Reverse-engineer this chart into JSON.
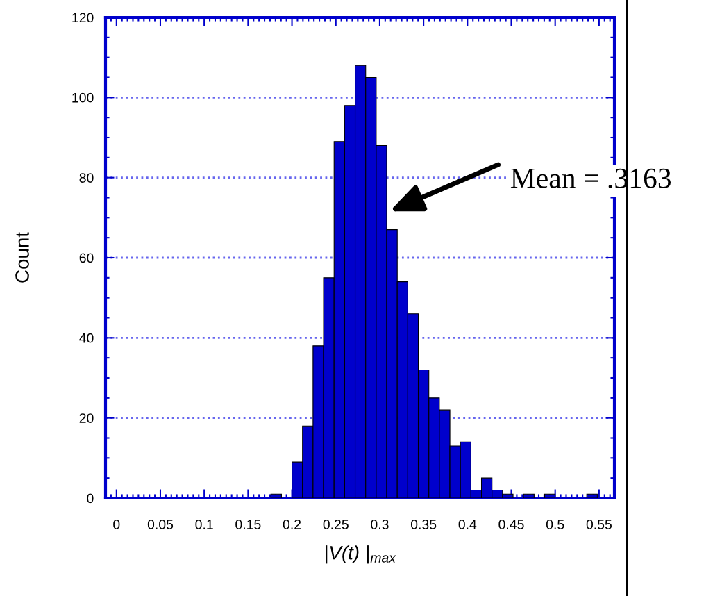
{
  "chart_data": {
    "type": "histogram",
    "xlabel": "|V(t) |$_{max}$",
    "ylabel": "Count",
    "bins": [
      0.176,
      0.188,
      0.2,
      0.212,
      0.224,
      0.236,
      0.248,
      0.26,
      0.272,
      0.284,
      0.296,
      0.308,
      0.32,
      0.332,
      0.344,
      0.356,
      0.368,
      0.38,
      0.392,
      0.404,
      0.416,
      0.428,
      0.44,
      0.452,
      0.464,
      0.476,
      0.488,
      0.5,
      0.512,
      0.524,
      0.536,
      0.548
    ],
    "values": [
      1,
      0,
      9,
      18,
      38,
      55,
      89,
      98,
      108,
      105,
      88,
      67,
      54,
      46,
      32,
      25,
      22,
      13,
      14,
      2,
      5,
      2,
      1,
      0,
      1,
      0,
      1,
      0,
      0,
      0,
      1
    ],
    "color": "#0000cc",
    "xlim": [
      -0.0125,
      0.5675
    ],
    "xticks": [
      0,
      0.05,
      0.1,
      0.15,
      0.2,
      0.25,
      0.3,
      0.35,
      0.4,
      0.45,
      0.5,
      0.55
    ],
    "ylim": [
      0,
      120
    ],
    "yticks": [
      0,
      20,
      40,
      60,
      80,
      100,
      120
    ],
    "grid": "y",
    "annotations": [
      "Mean = .3163"
    ]
  }
}
